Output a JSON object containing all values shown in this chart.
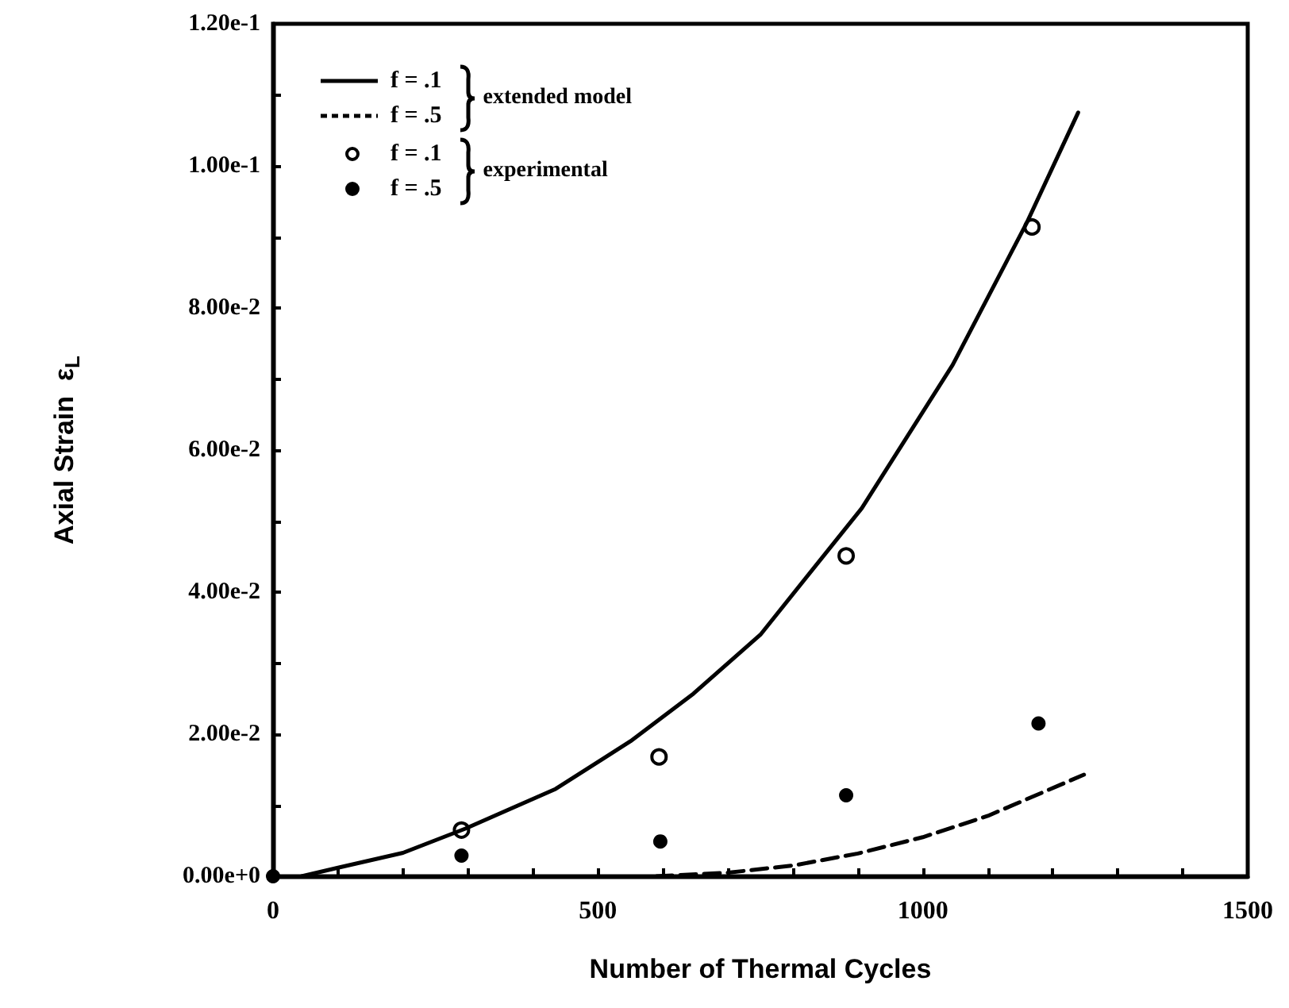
{
  "chart_data": {
    "type": "line",
    "xlabel": "Number of Thermal Cycles",
    "ylabel": "Axial Strain  ε$_{L}$",
    "xlim": [
      0,
      1500
    ],
    "xticks": [
      0,
      500,
      1000,
      1500
    ],
    "ylim": [
      0,
      0.12
    ],
    "yticks": [
      {
        "value": 0,
        "label": "0.00e+0"
      },
      {
        "value": 0.02,
        "label": "2.00e-2"
      },
      {
        "value": 0.04,
        "label": "4.00e-2"
      },
      {
        "value": 0.06,
        "label": "6.00e-2"
      },
      {
        "value": 0.08,
        "label": "8.00e-2"
      },
      {
        "value": 0.1,
        "label": "1.00e-1"
      },
      {
        "value": 0.12,
        "label": "1.20e-1"
      }
    ],
    "grid": false,
    "legend": "top left",
    "annotations": [
      "extended model",
      "experimental"
    ],
    "series": [
      {
        "name": "f = .1",
        "color": "#000000",
        "line_style": "solid",
        "marker": "none",
        "x": [
          44,
          100,
          200,
          296,
          435,
          550,
          647,
          750,
          906,
          1046,
          1160,
          1239
        ],
        "values": [
          0,
          0.0012,
          0.0033,
          0.0067,
          0.0123,
          0.019,
          0.0257,
          0.034,
          0.0518,
          0.072,
          0.092,
          0.1075
        ]
      },
      {
        "name": "f = .5",
        "color": "#000000",
        "line_style": "dashed",
        "marker": "none",
        "x": [
          590,
          700,
          800,
          900,
          1000,
          1100,
          1248
        ],
        "values": [
          0,
          0.0005,
          0.0015,
          0.0032,
          0.0055,
          0.0085,
          0.0143
        ]
      },
      {
        "name": "f = .1",
        "type": "scatter",
        "color": "#000000",
        "marker": "emptyCircle",
        "x": [
          290,
          594,
          882,
          1168
        ],
        "values": [
          0.0065,
          0.0168,
          0.0451,
          0.0914
        ]
      },
      {
        "name": "f = .5",
        "type": "scatter",
        "color": "#000000",
        "marker": "circle",
        "x": [
          0,
          290,
          596,
          882,
          1178
        ],
        "values": [
          0,
          0.0029,
          0.0049,
          0.0114,
          0.0215
        ]
      }
    ]
  }
}
